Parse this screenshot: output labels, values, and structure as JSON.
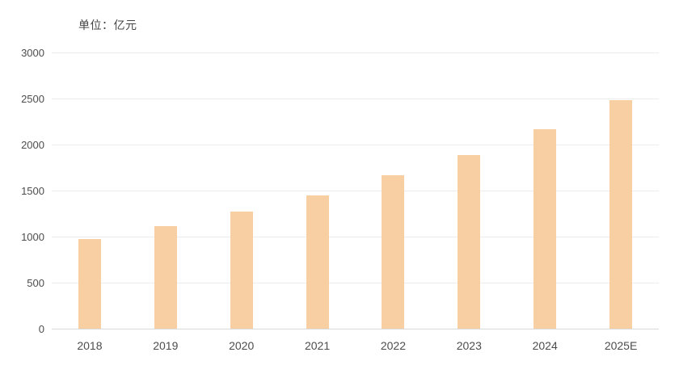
{
  "unit_label": "单位：亿元",
  "colors": {
    "bar_fill": "#f8cfa2",
    "gridline": "#ececec",
    "axis_line": "#d9d9d9",
    "label_text": "#4d4d4d",
    "unit_text": "#464646",
    "background": "#ffffff"
  },
  "chart_data": {
    "type": "bar",
    "title": "",
    "unit": "单位：亿元",
    "categories": [
      "2018",
      "2019",
      "2020",
      "2021",
      "2022",
      "2023",
      "2024",
      "2025E"
    ],
    "values": [
      970,
      1110,
      1270,
      1450,
      1670,
      1890,
      2170,
      2480
    ],
    "xlabel": "",
    "ylabel": "亿元",
    "ylim": [
      0,
      3000
    ],
    "yticks": [
      0,
      500,
      1000,
      1500,
      2000,
      2500,
      3000
    ],
    "grid": true,
    "legend_position": "none",
    "bar_color": "#f8cfa2"
  }
}
